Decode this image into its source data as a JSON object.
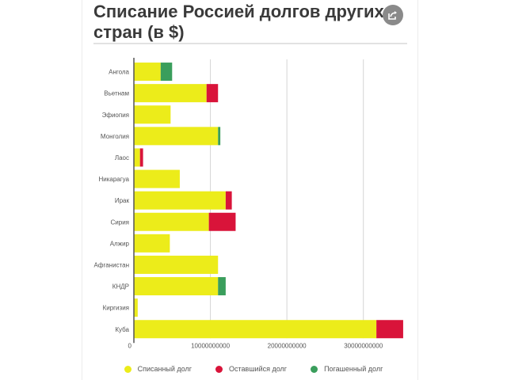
{
  "header": {
    "title": "Списание Россией долгов других стран (в $)",
    "share_icon": "share-icon"
  },
  "colors": {
    "written_off": "#ecec1a",
    "remaining": "#d9143a",
    "repaid": "#3a9e5c",
    "grid": "#d6d6d6",
    "axis": "#555555"
  },
  "chart_data": {
    "type": "bar",
    "orientation": "horizontal",
    "stacked": true,
    "categories": [
      "Ангола",
      "Вьетнам",
      "Эфиопия",
      "Монголия",
      "Лаос",
      "Никарагуа",
      "Ирак",
      "Сирия",
      "Алжир",
      "Афганистан",
      "КНДР",
      "Киргизия",
      "Куба"
    ],
    "series": [
      {
        "name": "Списанный долг",
        "color": "#ecec1a",
        "values": [
          3500000000,
          9500000000,
          4800000000,
          11000000000,
          800000000,
          6000000000,
          12000000000,
          9800000000,
          4700000000,
          11000000000,
          11000000000,
          500000000,
          31700000000
        ]
      },
      {
        "name": "Оставшийся долг",
        "color": "#d9143a",
        "values": [
          0,
          1500000000,
          0,
          0,
          400000000,
          0,
          800000000,
          3500000000,
          0,
          0,
          0,
          0,
          3500000000
        ]
      },
      {
        "name": "Погашенный долг",
        "color": "#3a9e5c",
        "values": [
          1500000000,
          0,
          0,
          300000000,
          0,
          0,
          0,
          0,
          0,
          0,
          1000000000,
          0,
          0
        ]
      }
    ],
    "xlim": [
      0,
      35000000000
    ],
    "xticks": [
      0,
      10000000000,
      20000000000,
      30000000000
    ],
    "xtick_labels": [
      "0",
      "10000000000",
      "20000000000",
      "30000000000"
    ],
    "grid": true,
    "legend_position": "bottom"
  }
}
